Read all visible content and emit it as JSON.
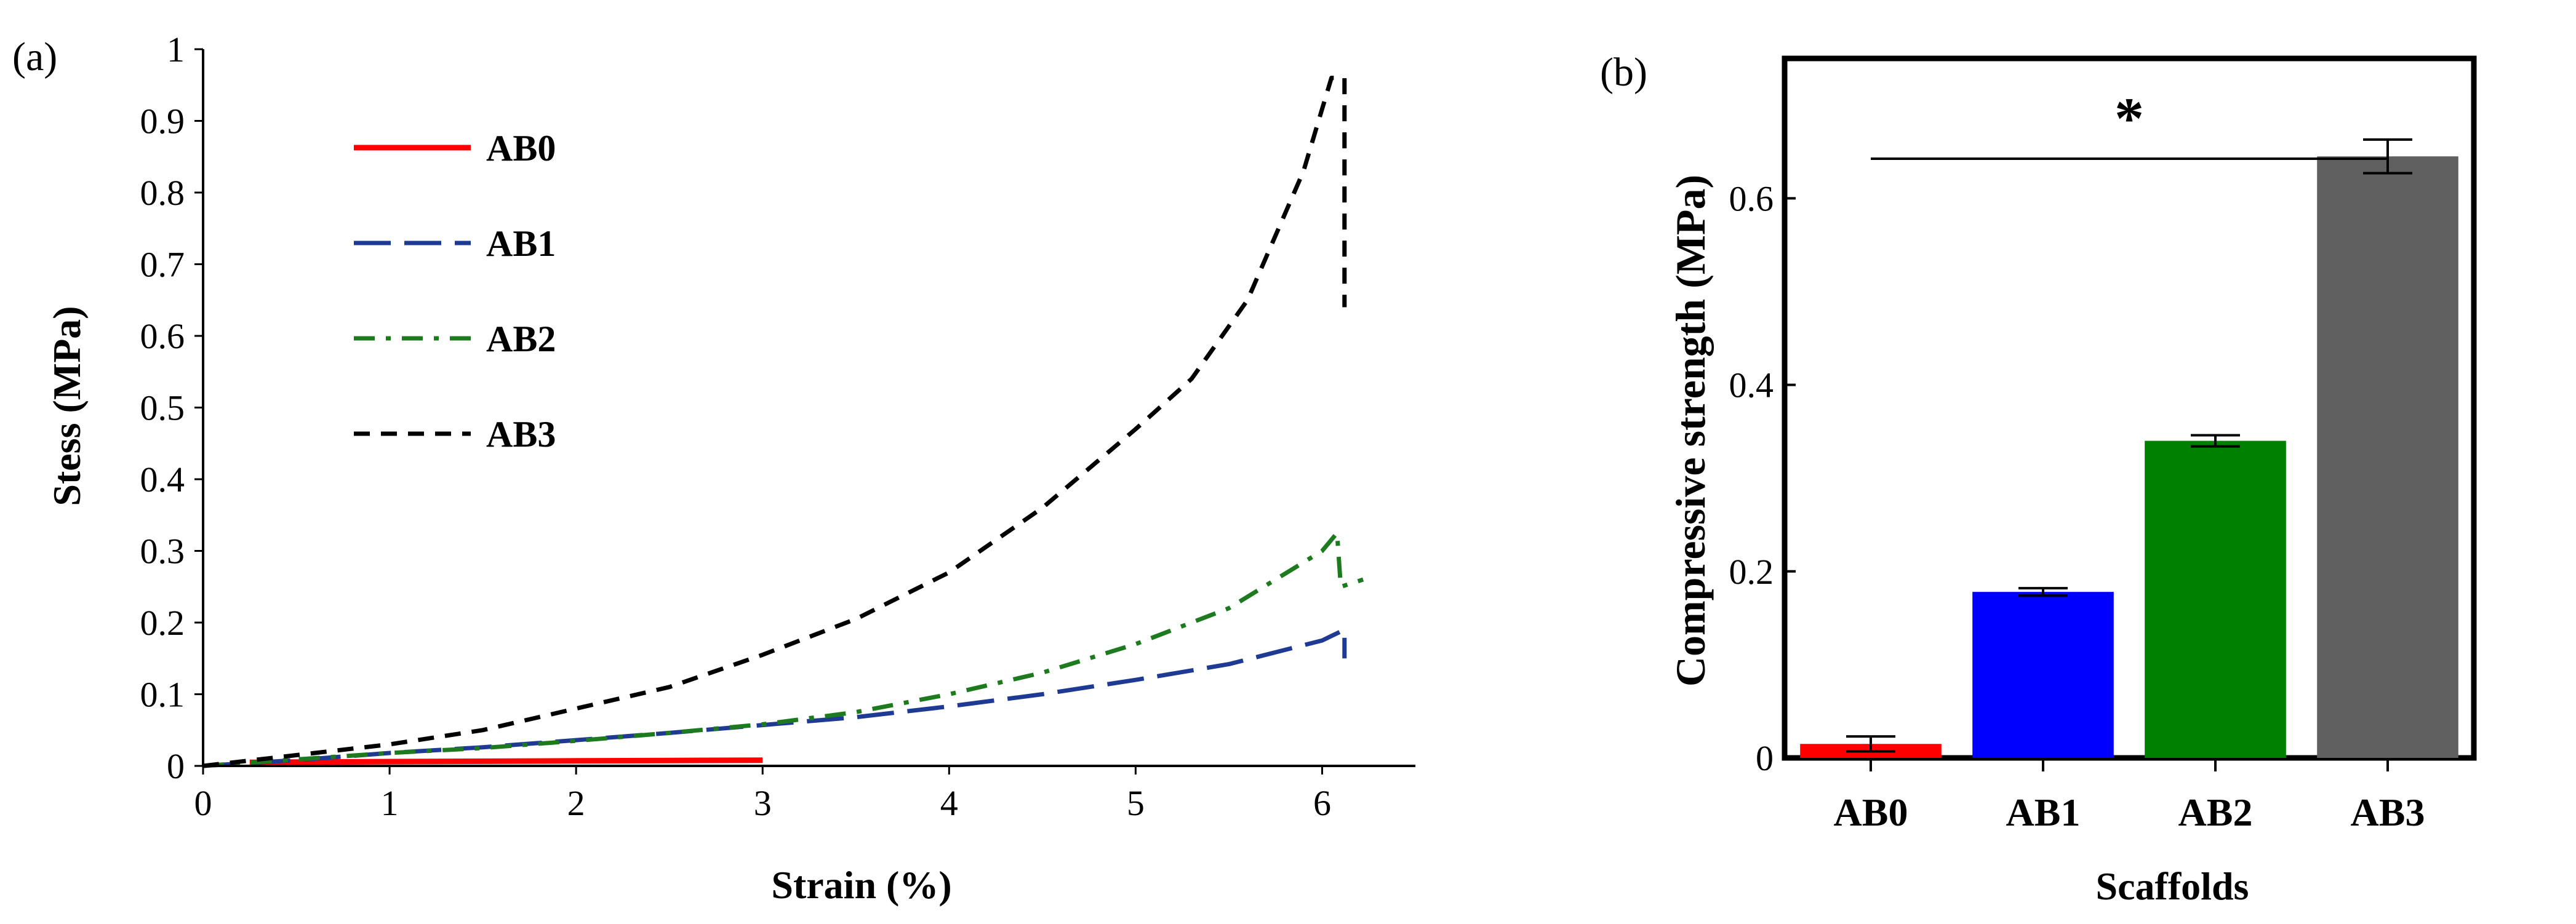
{
  "chart_data": [
    {
      "panel": "(a)",
      "type": "line",
      "xlabel": "Strain (%)",
      "ylabel": "Stess (MPa)",
      "xlim": [
        0,
        6.5
      ],
      "ylim": [
        0,
        1
      ],
      "xticks": [
        0,
        1,
        2,
        3,
        4,
        5,
        6
      ],
      "yticks": [
        0,
        0.1,
        0.2,
        0.3,
        0.4,
        0.5,
        0.6,
        0.7,
        0.8,
        0.9,
        1
      ],
      "legend_placement": "top-left",
      "series": [
        {
          "name": "AB0",
          "color": "#ff0000",
          "dash": "solid",
          "points": [
            [
              0.25,
              0.005
            ],
            [
              1,
              0.006
            ],
            [
              2,
              0.007
            ],
            [
              3,
              0.008
            ]
          ]
        },
        {
          "name": "AB1",
          "color": "#1f3a93",
          "dash": "long-dash",
          "points": [
            [
              0,
              0.0
            ],
            [
              0.5,
              0.008
            ],
            [
              1,
              0.018
            ],
            [
              1.5,
              0.026
            ],
            [
              2,
              0.036
            ],
            [
              2.5,
              0.046
            ],
            [
              3,
              0.057
            ],
            [
              3.5,
              0.068
            ],
            [
              4,
              0.083
            ],
            [
              4.5,
              0.1
            ],
            [
              5,
              0.12
            ],
            [
              5.5,
              0.142
            ],
            [
              6,
              0.175
            ],
            [
              6.12,
              0.19
            ],
            [
              6.12,
              0.15
            ]
          ]
        },
        {
          "name": "AB2",
          "color": "#1e7a1e",
          "dash": "dash-dot",
          "points": [
            [
              0,
              0.0
            ],
            [
              0.5,
              0.009
            ],
            [
              1,
              0.018
            ],
            [
              1.5,
              0.025
            ],
            [
              2,
              0.035
            ],
            [
              2.5,
              0.046
            ],
            [
              3,
              0.058
            ],
            [
              3.5,
              0.075
            ],
            [
              4,
              0.1
            ],
            [
              4.5,
              0.13
            ],
            [
              5,
              0.17
            ],
            [
              5.5,
              0.22
            ],
            [
              6,
              0.3
            ],
            [
              6.08,
              0.325
            ],
            [
              6.1,
              0.25
            ],
            [
              6.22,
              0.26
            ]
          ]
        },
        {
          "name": "AB3",
          "color": "#000000",
          "dash": "short-dash",
          "points": [
            [
              0,
              0.0
            ],
            [
              0.5,
              0.015
            ],
            [
              1,
              0.03
            ],
            [
              1.5,
              0.05
            ],
            [
              2,
              0.08
            ],
            [
              2.5,
              0.11
            ],
            [
              3,
              0.155
            ],
            [
              3.5,
              0.205
            ],
            [
              4,
              0.27
            ],
            [
              4.5,
              0.36
            ],
            [
              5,
              0.47
            ],
            [
              5.3,
              0.54
            ],
            [
              5.6,
              0.65
            ],
            [
              5.9,
              0.83
            ],
            [
              6.05,
              0.96
            ],
            [
              6.12,
              0.96
            ],
            [
              6.12,
              0.64
            ]
          ]
        }
      ]
    },
    {
      "panel": "(b)",
      "type": "bar",
      "xlabel": "Scaffolds",
      "ylabel": "Compressive strength (MPa)",
      "ylim": [
        0,
        0.75
      ],
      "yticks": [
        0,
        0.2,
        0.4,
        0.6
      ],
      "categories": [
        "AB0",
        "AB1",
        "AB2",
        "AB3"
      ],
      "values": [
        0.015,
        0.178,
        0.34,
        0.645
      ],
      "errors": [
        0.008,
        0.004,
        0.006,
        0.018
      ],
      "colors": [
        "#ff0000",
        "#0000ff",
        "#008000",
        "#606060"
      ],
      "annotation": "*"
    }
  ]
}
